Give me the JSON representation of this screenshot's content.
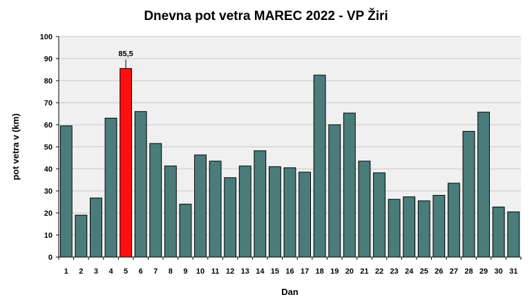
{
  "chart_data": {
    "type": "bar",
    "title": "Dnevna pot vetra MAREC 2022 - VP Žiri",
    "xlabel": "Dan",
    "ylabel": "pot vetra  v (km)",
    "ylim": [
      0,
      100
    ],
    "yticks": [
      0,
      10,
      20,
      30,
      40,
      50,
      60,
      70,
      80,
      90,
      100
    ],
    "grid": true,
    "legend": "none",
    "categories": [
      "1",
      "2",
      "3",
      "4",
      "5",
      "6",
      "7",
      "8",
      "9",
      "10",
      "11",
      "12",
      "13",
      "14",
      "15",
      "16",
      "17",
      "18",
      "19",
      "20",
      "21",
      "22",
      "23",
      "24",
      "25",
      "26",
      "27",
      "28",
      "29",
      "30",
      "31"
    ],
    "values": [
      59.5,
      19,
      26.8,
      63,
      85.5,
      66,
      51.5,
      41.3,
      24,
      46.3,
      43.5,
      36,
      41.3,
      48.2,
      41,
      40.5,
      38.5,
      82.5,
      60,
      65.3,
      43.5,
      38.2,
      26.2,
      27.3,
      25.5,
      28,
      33.5,
      57,
      65.7,
      22.7,
      20.5
    ],
    "highlight": {
      "category": "5",
      "label": "85,5"
    },
    "colors": {
      "bar": "#4a7c7a",
      "highlight": "#ff1010",
      "plot_background": "#f0f0f0",
      "grid": "#c8c8c8"
    }
  }
}
